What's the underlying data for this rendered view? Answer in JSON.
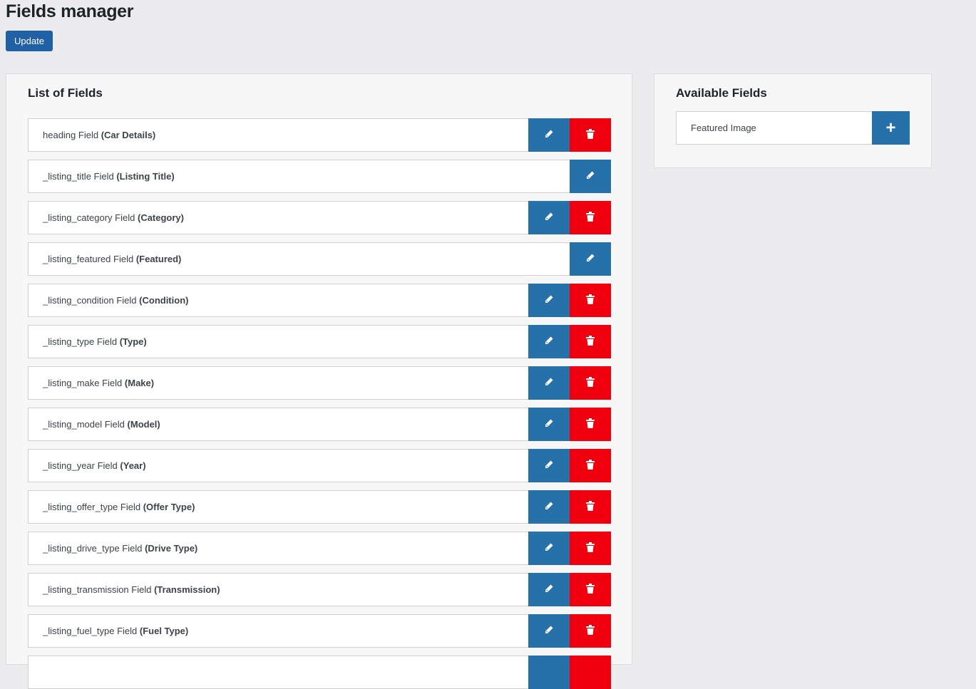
{
  "page_title": "Fields manager",
  "update_label": "Update",
  "list_panel": {
    "title": "List of Fields",
    "fields": [
      {
        "key": "heading Field",
        "label": "(Car Details)",
        "deletable": true
      },
      {
        "key": "_listing_title Field",
        "label": "(Listing Title)",
        "deletable": false
      },
      {
        "key": "_listing_category Field",
        "label": "(Category)",
        "deletable": true
      },
      {
        "key": "_listing_featured Field",
        "label": "(Featured)",
        "deletable": false
      },
      {
        "key": "_listing_condition Field",
        "label": "(Condition)",
        "deletable": true
      },
      {
        "key": "_listing_type Field",
        "label": "(Type)",
        "deletable": true
      },
      {
        "key": "_listing_make Field",
        "label": "(Make)",
        "deletable": true
      },
      {
        "key": "_listing_model Field",
        "label": "(Model)",
        "deletable": true
      },
      {
        "key": "_listing_year Field",
        "label": "(Year)",
        "deletable": true
      },
      {
        "key": "_listing_offer_type Field",
        "label": "(Offer Type)",
        "deletable": true
      },
      {
        "key": "_listing_drive_type Field",
        "label": "(Drive Type)",
        "deletable": true
      },
      {
        "key": "_listing_transmission Field",
        "label": "(Transmission)",
        "deletable": true
      },
      {
        "key": "_listing_fuel_type Field",
        "label": "(Fuel Type)",
        "deletable": true
      }
    ]
  },
  "available_panel": {
    "title": "Available Fields",
    "items": [
      {
        "label": "Featured Image",
        "add_icon": "+"
      }
    ]
  },
  "colors": {
    "primary": "#2060a4",
    "edit": "#2771aa",
    "delete": "#f0000f"
  }
}
